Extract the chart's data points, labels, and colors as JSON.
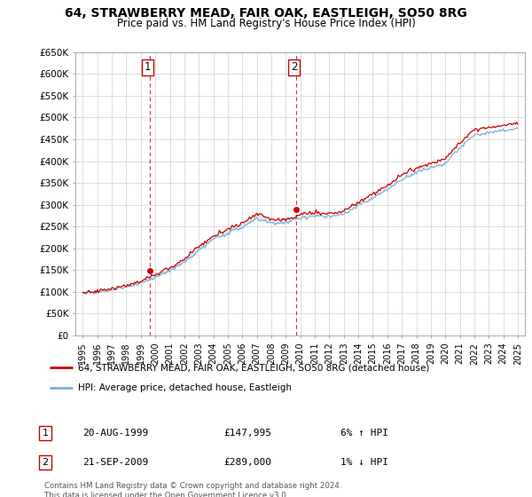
{
  "title": "64, STRAWBERRY MEAD, FAIR OAK, EASTLEIGH, SO50 8RG",
  "subtitle": "Price paid vs. HM Land Registry's House Price Index (HPI)",
  "legend_line1": "64, STRAWBERRY MEAD, FAIR OAK, EASTLEIGH, SO50 8RG (detached house)",
  "legend_line2": "HPI: Average price, detached house, Eastleigh",
  "annotation1_date": "20-AUG-1999",
  "annotation1_price": "£147,995",
  "annotation1_hpi": "6% ↑ HPI",
  "annotation2_date": "21-SEP-2009",
  "annotation2_price": "£289,000",
  "annotation2_hpi": "1% ↓ HPI",
  "footnote": "Contains HM Land Registry data © Crown copyright and database right 2024.\nThis data is licensed under the Open Government Licence v3.0.",
  "property_color": "#cc0000",
  "hpi_color": "#7ab0d4",
  "shade_color": "#daeaf5",
  "sale1_x": 1999.63,
  "sale1_y": 147995,
  "sale2_x": 2009.72,
  "sale2_y": 289000,
  "ylim": [
    0,
    650000
  ],
  "xlim": [
    1994.5,
    2025.5
  ],
  "yticks": [
    0,
    50000,
    100000,
    150000,
    200000,
    250000,
    300000,
    350000,
    400000,
    450000,
    500000,
    550000,
    600000,
    650000
  ],
  "ytick_labels": [
    "£0",
    "£50K",
    "£100K",
    "£150K",
    "£200K",
    "£250K",
    "£300K",
    "£350K",
    "£400K",
    "£450K",
    "£500K",
    "£550K",
    "£600K",
    "£650K"
  ],
  "xticks": [
    1995,
    1996,
    1997,
    1998,
    1999,
    2000,
    2001,
    2002,
    2003,
    2004,
    2005,
    2006,
    2007,
    2008,
    2009,
    2010,
    2011,
    2012,
    2013,
    2014,
    2015,
    2016,
    2017,
    2018,
    2019,
    2020,
    2021,
    2022,
    2023,
    2024,
    2025
  ]
}
